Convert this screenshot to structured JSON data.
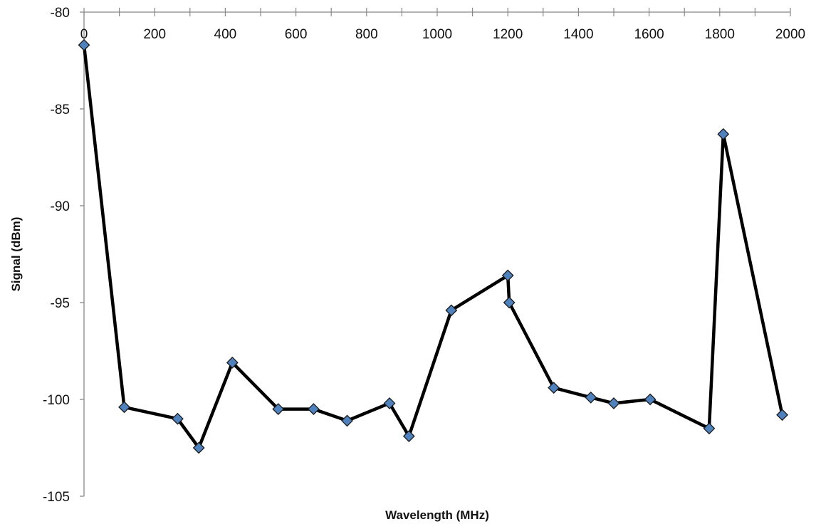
{
  "chart_data": {
    "type": "line",
    "title": "",
    "xlabel": "Wavelength (MHz)",
    "ylabel": "Signal (dBm)",
    "xlim": [
      0,
      2000
    ],
    "ylim": [
      -105,
      -80
    ],
    "x_major_ticks": [
      0,
      200,
      400,
      600,
      800,
      1000,
      1200,
      1400,
      1600,
      1800,
      2000
    ],
    "x_minor_step": 100,
    "y_ticks": [
      -80,
      -85,
      -90,
      -95,
      -100,
      -105
    ],
    "x_axis_position": "top",
    "grid": false,
    "legend": "none",
    "series": [
      {
        "line_color": "#000000",
        "marker_color": "#4f81bd",
        "marker": "diamond",
        "x": [
          0,
          114,
          265,
          325,
          420,
          550,
          650,
          745,
          865,
          920,
          1040,
          1200,
          1204,
          1330,
          1435,
          1500,
          1603,
          1770,
          1810,
          1977
        ],
        "y": [
          -81.7,
          -100.4,
          -101.0,
          -102.5,
          -98.1,
          -100.5,
          -100.5,
          -101.1,
          -100.2,
          -101.9,
          -95.4,
          -93.6,
          -95.0,
          -99.4,
          -99.9,
          -100.2,
          -100.0,
          -101.5,
          -86.3,
          -100.8
        ]
      }
    ]
  }
}
